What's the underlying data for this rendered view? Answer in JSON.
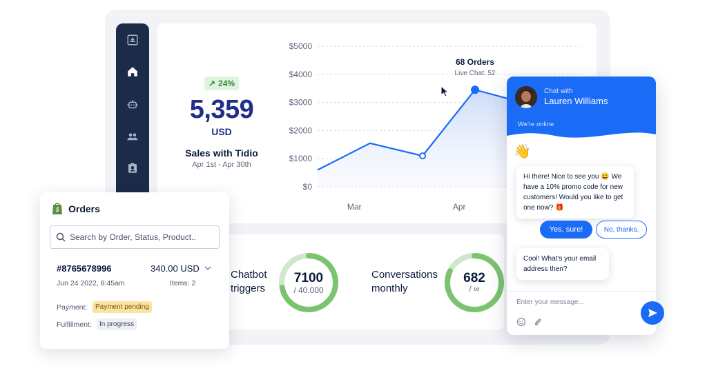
{
  "sales": {
    "growth": "24%",
    "value": "5,359",
    "currency": "USD",
    "title": "Sales with Tidio",
    "range": "Apr 1st - Apr 30th"
  },
  "chart_data": {
    "type": "line",
    "title": "",
    "xlabel": "",
    "ylabel": "",
    "y_ticks": [
      "$5000",
      "$4000",
      "$3000",
      "$2000",
      "$1000",
      "$0"
    ],
    "x_ticks": [
      "Mar",
      "Apr"
    ],
    "ylim": [
      0,
      5000
    ],
    "grid": true,
    "series": [
      {
        "points": [
          [
            0,
            600
          ],
          [
            1,
            1550
          ],
          [
            2,
            1100
          ],
          [
            3,
            3450
          ],
          [
            4,
            2950
          ]
        ]
      }
    ],
    "tooltip": {
      "title": "68 Orders",
      "subtitle": "Live Chat: 52"
    },
    "highlight_index": 3,
    "colors": {
      "line": "#1a6bf5",
      "area": "#dbe6fb"
    }
  },
  "stats": {
    "chatbot": {
      "label_line1": "Chatbot",
      "label_line2": "triggers",
      "value": "7100",
      "sub": "/ 40.000",
      "fill": 0.72
    },
    "conversations": {
      "label_line1": "Conversations",
      "label_line2": "monthly",
      "value": "682",
      "sub": "/ ∞",
      "fill": 0.82
    }
  },
  "orders": {
    "title": "Orders",
    "search_placeholder": "Search by Order, Status, Product..",
    "order_id": "#8765678996",
    "amount": "340.00 USD",
    "date": "Jun 24 2022, 8:45am",
    "items": "Items: 2",
    "payment_label": "Payment:",
    "payment_status": "Payment pending",
    "fulfillment_label": "Fulfillment:",
    "fulfillment_status": "In progress"
  },
  "chat": {
    "chat_with": "Chat with",
    "agent_name": "Lauren Williams",
    "status": "We're online",
    "wave": "👋",
    "message1": "Hi there! Nice to see you 😀 We have a 10% promo code for new customers! Would you like to get one now? 🎁",
    "yes_label": "Yes, sure!",
    "no_label": "No, thanks.",
    "message2": "Cool! What's your email address then?",
    "input_placeholder": "Enter your message...",
    "colors": {
      "brand": "#1a6bf5"
    }
  },
  "sidebar": {
    "icons": [
      "inbox-icon",
      "home-icon",
      "bot-icon",
      "contacts-icon",
      "profile-card-icon"
    ]
  }
}
